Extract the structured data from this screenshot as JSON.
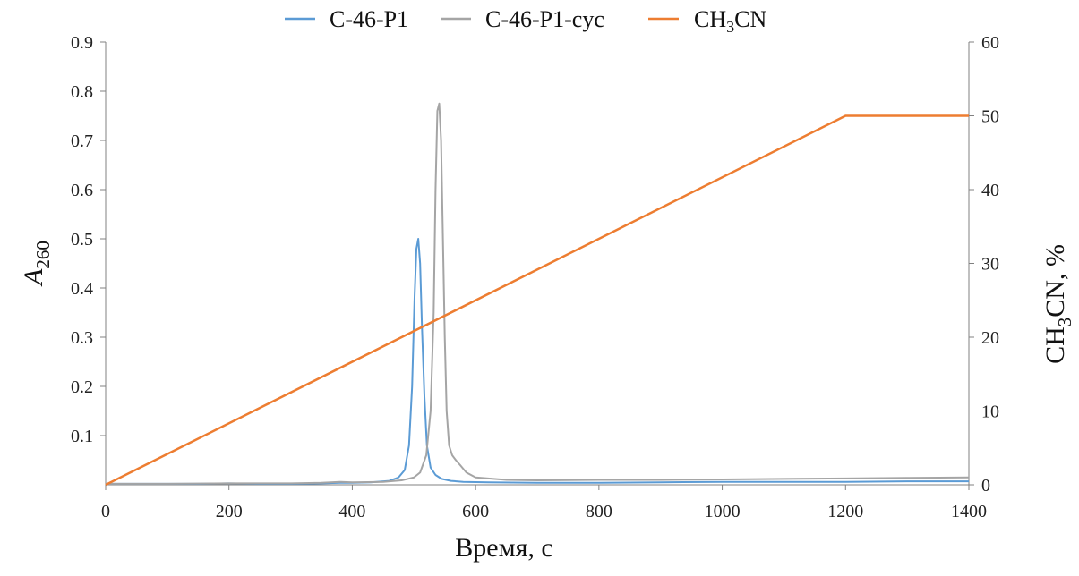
{
  "chart_data": {
    "type": "line",
    "legend": {
      "placement": "top-center",
      "items": [
        {
          "label": "C-46-P1",
          "color": "#5B9BD5"
        },
        {
          "label": "C-46-P1-cyc",
          "color": "#A5A5A5"
        },
        {
          "label_main": "CH",
          "label_sub": "3",
          "label_tail": "CN",
          "color": "#ED7D31"
        }
      ]
    },
    "xlabel": "Время, с",
    "ylabel_left": {
      "main": "A",
      "sub": "260"
    },
    "ylabel_right": {
      "main": "CH",
      "sub": "3",
      "tail": "CN, %"
    },
    "xlim": [
      0,
      1400
    ],
    "ylim_left": [
      0,
      0.9
    ],
    "ylim_right": [
      0,
      60
    ],
    "x_ticks": [
      0,
      200,
      400,
      600,
      800,
      1000,
      1200,
      1400
    ],
    "y_left_ticks": [
      0.1,
      0.2,
      0.3,
      0.4,
      0.5,
      0.6,
      0.7,
      0.8,
      0.9
    ],
    "y_left_tick_labels": [
      "0.1",
      "0.2",
      "0.3",
      "0.4",
      "0.5",
      "0.6",
      "0.7",
      "0.8",
      "0.9"
    ],
    "y_right_ticks": [
      0,
      10,
      20,
      30,
      40,
      50,
      60
    ],
    "grid": false,
    "series": [
      {
        "name": "C-46-P1",
        "axis": "left",
        "color": "#5B9BD5",
        "x": [
          0,
          50,
          100,
          150,
          200,
          250,
          300,
          350,
          380,
          400,
          430,
          460,
          475,
          485,
          492,
          497,
          501,
          504,
          507,
          510,
          513,
          517,
          521,
          527,
          535,
          545,
          560,
          580,
          620,
          700,
          800,
          900,
          1000,
          1100,
          1200,
          1300,
          1400
        ],
        "y": [
          0.002,
          0.002,
          0.002,
          0.002,
          0.003,
          0.002,
          0.002,
          0.003,
          0.004,
          0.004,
          0.005,
          0.008,
          0.015,
          0.03,
          0.08,
          0.2,
          0.38,
          0.48,
          0.5,
          0.45,
          0.32,
          0.18,
          0.08,
          0.035,
          0.02,
          0.012,
          0.008,
          0.006,
          0.005,
          0.004,
          0.004,
          0.005,
          0.006,
          0.006,
          0.006,
          0.007,
          0.007
        ]
      },
      {
        "name": "C-46-P1-cyc",
        "axis": "left",
        "color": "#A5A5A5",
        "x": [
          0,
          100,
          200,
          300,
          350,
          380,
          400,
          450,
          480,
          500,
          510,
          520,
          527,
          532,
          535,
          538,
          541,
          544,
          547,
          550,
          553,
          557,
          562,
          568,
          575,
          585,
          600,
          650,
          700,
          800,
          900,
          1000,
          1100,
          1200,
          1300,
          1400
        ],
        "y": [
          0.002,
          0.002,
          0.003,
          0.003,
          0.004,
          0.006,
          0.005,
          0.006,
          0.009,
          0.015,
          0.025,
          0.06,
          0.15,
          0.35,
          0.6,
          0.76,
          0.775,
          0.7,
          0.5,
          0.3,
          0.15,
          0.08,
          0.06,
          0.05,
          0.04,
          0.025,
          0.015,
          0.01,
          0.009,
          0.01,
          0.01,
          0.011,
          0.012,
          0.013,
          0.014,
          0.015
        ]
      },
      {
        "name": "CH3CN",
        "axis": "right",
        "color": "#ED7D31",
        "x": [
          0,
          1200,
          1400
        ],
        "y": [
          0,
          50,
          50
        ]
      }
    ]
  }
}
